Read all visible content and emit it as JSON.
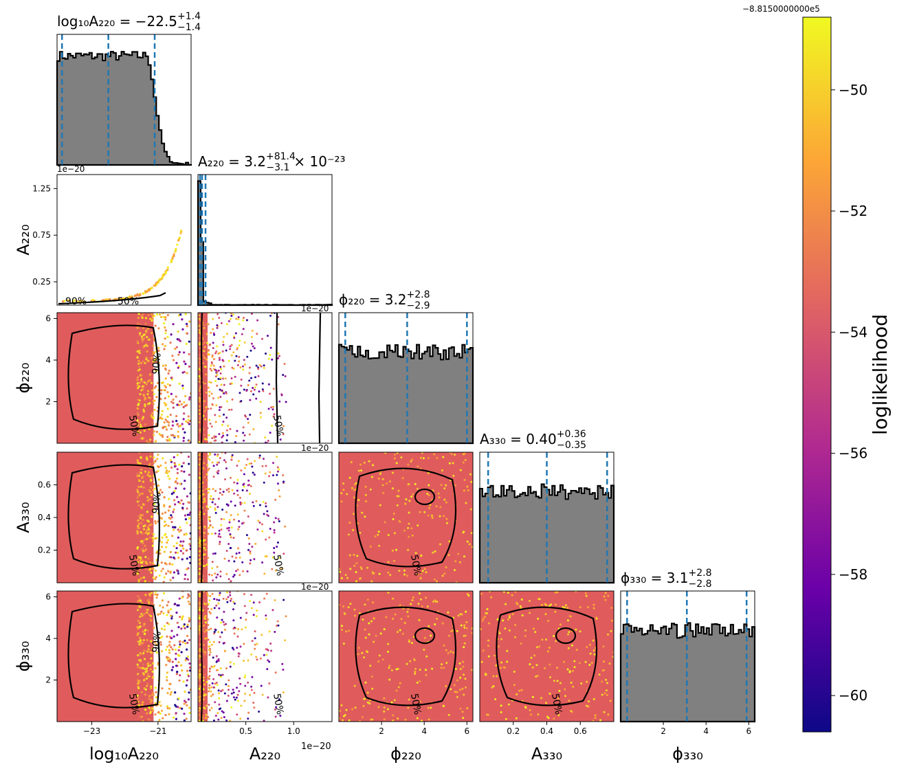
{
  "figure": {
    "offset_label": "−8.8150000000e5",
    "sci_label": "1e−20",
    "colorbar": {
      "label": "loglikelihood",
      "ticks": [
        "−50",
        "−52",
        "−54",
        "−56",
        "−58",
        "−60"
      ],
      "tick_values": [
        -50,
        -52,
        -54,
        -56,
        -58,
        -60
      ],
      "range": [
        -60.6,
        -48.8
      ],
      "colormap": [
        "#0d0887",
        "#6a00a8",
        "#b12a90",
        "#e16462",
        "#fca636",
        "#f0f921"
      ]
    },
    "colors": {
      "hist_fill": "#808080",
      "quantile_line": "#1f77b4",
      "scatter_main": "#e05c5c",
      "contour": "#000000"
    }
  },
  "chart_data": {
    "type": "scatter",
    "parameters": [
      {
        "name": "log10A220",
        "title": "log₁₀A₂₂₀ = −22.5",
        "sup": "+1.4",
        "sub": "−1.4",
        "xlabel": "log₁₀A₂₂₀",
        "ylabel": "",
        "median": -22.5,
        "q_low": -23.9,
        "q_high": -21.1,
        "range": [
          -24.05,
          -20.0
        ],
        "ticks": [
          "−23",
          "−21"
        ],
        "tick_values": [
          -23,
          -21
        ]
      },
      {
        "name": "A220",
        "title": "A₂₂₀ = 3.2",
        "sup": "+81.4",
        "sub": "−3.1",
        "title_suffix": "× 10⁻²³",
        "xlabel": "A₂₂₀",
        "ylabel": "A₂₂₀",
        "median": 3.2e-23,
        "q_low": 1e-24,
        "q_high": 8.46e-22,
        "range": [
          0,
          1.4e-20
        ],
        "ticks": [
          "0.5",
          "1.0"
        ],
        "tick_values": [
          5e-21,
          1e-20
        ],
        "yticks": [
          "0.25",
          "0.75",
          "1.25"
        ],
        "ytick_values": [
          2.5e-21,
          7.5e-21,
          1.25e-20
        ]
      },
      {
        "name": "phi220",
        "title": "ϕ₂₂₀ = 3.2",
        "sup": "+2.8",
        "sub": "−2.9",
        "xlabel": "ϕ₂₂₀",
        "ylabel": "ϕ₂₂₀",
        "median": 3.2,
        "q_low": 0.3,
        "q_high": 6.0,
        "range": [
          0,
          6.28
        ],
        "ticks": [
          "2",
          "4",
          "6"
        ],
        "tick_values": [
          2,
          4,
          6
        ]
      },
      {
        "name": "A330",
        "title": "A₃₃₀ = 0.40",
        "sup": "+0.36",
        "sub": "−0.35",
        "xlabel": "A₃₃₀",
        "ylabel": "A₃₃₀",
        "median": 0.4,
        "q_low": 0.05,
        "q_high": 0.76,
        "range": [
          0,
          0.8
        ],
        "ticks": [
          "0.2",
          "0.4",
          "0.6"
        ],
        "tick_values": [
          0.2,
          0.4,
          0.6
        ]
      },
      {
        "name": "phi330",
        "title": "ϕ₃₃₀ = 3.1",
        "sup": "+2.8",
        "sub": "−2.8",
        "xlabel": "ϕ₃₃₀",
        "ylabel": "ϕ₃₃₀",
        "median": 3.1,
        "q_low": 0.3,
        "q_high": 5.9,
        "range": [
          0,
          6.28
        ],
        "ticks": [
          "2",
          "4",
          "6"
        ],
        "tick_values": [
          2,
          4,
          6
        ]
      }
    ],
    "contour_labels": [
      "50%",
      "90%"
    ]
  }
}
